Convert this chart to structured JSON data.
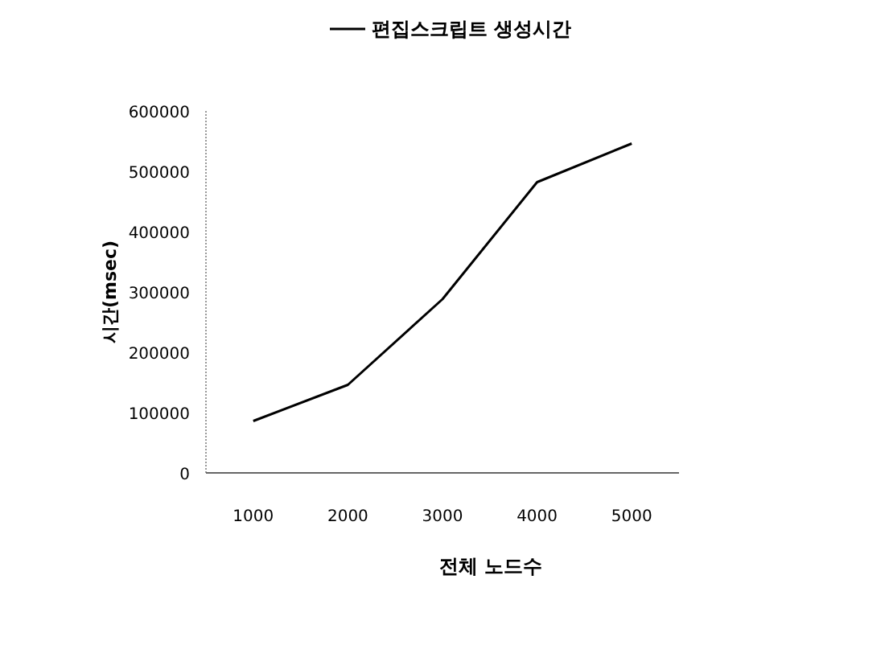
{
  "chart_data": {
    "type": "line",
    "xlabel": "전체 노드수",
    "ylabel": "시간(msec)",
    "legend": "top",
    "categories": [
      "1000",
      "2000",
      "3000",
      "4000",
      "5000"
    ],
    "series": [
      {
        "name": "편집스크립트 생성시간",
        "color": "#000000",
        "values": [
          86000,
          146000,
          288000,
          482000,
          546000
        ]
      }
    ],
    "ylim": [
      0,
      600000
    ],
    "yticks": [
      0,
      100000,
      200000,
      300000,
      400000,
      500000,
      600000
    ],
    "grid": false
  }
}
